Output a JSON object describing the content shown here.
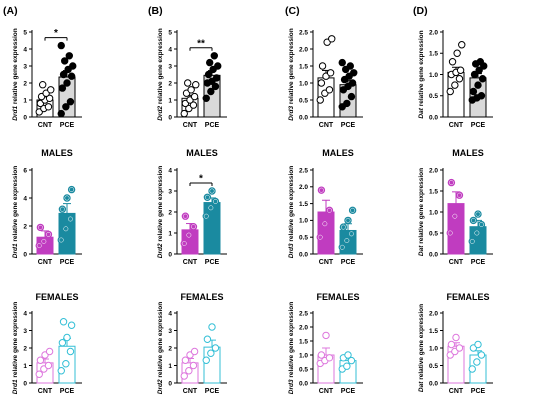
{
  "colors": {
    "combined_cnt_fill": "#ffffff",
    "combined_pce_fill": "#d9d9d9",
    "combined_stroke": "#000000",
    "males_cnt": "#c03cc0",
    "males_pce": "#1a8aa0",
    "females_cnt": "#dd77dd",
    "females_pce": "#33bfd6"
  },
  "panel_letters": [
    "(A)",
    "(B)",
    "(C)",
    "(D)"
  ],
  "row_labels": [
    "",
    "MALES",
    "FEMALES"
  ],
  "chart_data": [
    {
      "type": "bar",
      "panel": "(A)",
      "row": "combined",
      "ylabel_gene": "Drd1",
      "ylabel_rest": " relative gene expression",
      "ylim": [
        0,
        5
      ],
      "yticks": [
        "0",
        "1",
        "2",
        "3",
        "4",
        "5"
      ],
      "categories": [
        "CNT",
        "PCE"
      ],
      "series": [
        {
          "values": [
            1.0,
            2.35
          ],
          "sem": [
            0.18,
            0.38
          ]
        }
      ],
      "points": [
        [
          0.3,
          0.5,
          0.6,
          0.8,
          1.0,
          1.1,
          1.2,
          1.4,
          1.6,
          1.9
        ],
        [
          0.2,
          0.6,
          0.9,
          1.7,
          2.0,
          2.4,
          2.5,
          2.8,
          3.0,
          3.3,
          3.6,
          4.2
        ]
      ],
      "significance": [
        {
          "label": "*",
          "between": [
            "CNT",
            "PCE"
          ]
        }
      ]
    },
    {
      "type": "bar",
      "panel": "(B)",
      "row": "combined",
      "ylabel_gene": "Drd2",
      "ylabel_rest": " relative gene expression",
      "ylim": [
        0,
        5
      ],
      "yticks": [
        "0",
        "1",
        "2",
        "3",
        "4",
        "5"
      ],
      "categories": [
        "CNT",
        "PCE"
      ],
      "series": [
        {
          "values": [
            1.1,
            2.45
          ],
          "sem": [
            0.18,
            0.28
          ]
        }
      ],
      "points": [
        [
          0.2,
          0.5,
          0.7,
          0.8,
          1.0,
          1.2,
          1.4,
          1.6,
          1.9,
          2.0
        ],
        [
          1.1,
          1.5,
          1.8,
          2.0,
          2.1,
          2.3,
          2.5,
          2.8,
          3.0,
          3.2,
          3.6
        ]
      ],
      "significance": [
        {
          "label": "**",
          "between": [
            "CNT",
            "PCE"
          ]
        }
      ]
    },
    {
      "type": "bar",
      "panel": "(C)",
      "row": "combined",
      "ylabel_gene": "Drd3",
      "ylabel_rest": " relative gene expression",
      "ylim": [
        0,
        2.5
      ],
      "yticks": [
        "0.0",
        "0.5",
        "1.0",
        "1.5",
        "2.0",
        "2.5"
      ],
      "categories": [
        "CNT",
        "PCE"
      ],
      "series": [
        {
          "values": [
            1.15,
            0.95
          ],
          "sem": [
            0.22,
            0.12
          ]
        }
      ],
      "points": [
        [
          0.5,
          0.7,
          0.8,
          1.0,
          1.2,
          1.3,
          1.5,
          2.2,
          2.3
        ],
        [
          0.3,
          0.4,
          0.6,
          0.8,
          0.9,
          1.0,
          1.1,
          1.2,
          1.3,
          1.4,
          1.5,
          1.6
        ]
      ],
      "significance": []
    },
    {
      "type": "bar",
      "panel": "(D)",
      "row": "combined",
      "ylabel_gene": "Dat",
      "ylabel_rest": " relative gene expression",
      "ylim": [
        0,
        2.0
      ],
      "yticks": [
        "0.0",
        "0.5",
        "1.0",
        "1.5",
        "2.0"
      ],
      "categories": [
        "CNT",
        "PCE"
      ],
      "series": [
        {
          "values": [
            1.05,
            0.92
          ],
          "sem": [
            0.12,
            0.1
          ]
        }
      ],
      "points": [
        [
          0.6,
          0.75,
          0.9,
          1.0,
          1.05,
          1.1,
          1.3,
          1.5,
          1.7
        ],
        [
          0.4,
          0.45,
          0.5,
          0.6,
          0.75,
          0.9,
          1.0,
          1.1,
          1.2,
          1.25,
          1.3
        ]
      ],
      "significance": []
    },
    {
      "type": "bar",
      "panel": "(A)",
      "row": "males",
      "ylabel_gene": "Drd1",
      "ylabel_rest": " relative gene expression",
      "ylim": [
        0,
        6
      ],
      "yticks": [
        "0",
        "2",
        "4",
        "6"
      ],
      "categories": [
        "CNT",
        "PCE"
      ],
      "series": [
        {
          "values": [
            1.2,
            2.9
          ],
          "sem": [
            0.45,
            0.7
          ]
        }
      ],
      "points": [
        [
          0.6,
          0.9,
          1.4,
          1.9
        ],
        [
          1.0,
          1.8,
          2.5,
          3.2,
          4.0,
          4.6
        ]
      ],
      "significance": []
    },
    {
      "type": "bar",
      "panel": "(B)",
      "row": "males",
      "ylabel_gene": "Drd2",
      "ylabel_rest": " relative gene expression",
      "ylim": [
        0,
        4
      ],
      "yticks": [
        "0",
        "1",
        "2",
        "3",
        "4"
      ],
      "categories": [
        "CNT",
        "PCE"
      ],
      "series": [
        {
          "values": [
            1.15,
            2.45
          ],
          "sem": [
            0.3,
            0.22
          ]
        }
      ],
      "points": [
        [
          0.5,
          0.9,
          1.3,
          1.8
        ],
        [
          1.8,
          2.2,
          2.5,
          2.7,
          3.0
        ]
      ],
      "significance": [
        {
          "label": "*",
          "between": [
            "CNT",
            "PCE"
          ]
        }
      ]
    },
    {
      "type": "bar",
      "panel": "(C)",
      "row": "males",
      "ylabel_gene": "Drd3",
      "ylabel_rest": " relative gene expression",
      "ylim": [
        0,
        2.5
      ],
      "yticks": [
        "0.0",
        "0.5",
        "1.0",
        "1.5",
        "2.0",
        "2.5"
      ],
      "categories": [
        "CNT",
        "PCE"
      ],
      "series": [
        {
          "values": [
            1.25,
            0.7
          ],
          "sem": [
            0.35,
            0.2
          ]
        }
      ],
      "points": [
        [
          0.5,
          0.9,
          1.3,
          1.9
        ],
        [
          0.2,
          0.4,
          0.6,
          0.8,
          1.0,
          1.3
        ]
      ],
      "significance": []
    },
    {
      "type": "bar",
      "panel": "(D)",
      "row": "males",
      "ylabel_gene": "Dat",
      "ylabel_rest": " relative gene expression",
      "ylim": [
        0,
        2.0
      ],
      "yticks": [
        "0.0",
        "0.5",
        "1.0",
        "1.5",
        "2.0"
      ],
      "categories": [
        "CNT",
        "PCE"
      ],
      "series": [
        {
          "values": [
            1.2,
            0.65
          ],
          "sem": [
            0.28,
            0.15
          ]
        }
      ],
      "points": [
        [
          0.5,
          0.9,
          1.4,
          1.7
        ],
        [
          0.3,
          0.5,
          0.7,
          0.8,
          0.95
        ]
      ],
      "significance": []
    },
    {
      "type": "bar",
      "panel": "(A)",
      "row": "females",
      "ylabel_gene": "Drd1",
      "ylabel_rest": " relative gene expression",
      "ylim": [
        0,
        4
      ],
      "yticks": [
        "0",
        "1",
        "2",
        "3",
        "4"
      ],
      "categories": [
        "CNT",
        "PCE"
      ],
      "series": [
        {
          "values": [
            1.15,
            2.1
          ],
          "sem": [
            0.22,
            0.45
          ]
        }
      ],
      "points": [
        [
          0.5,
          0.8,
          1.0,
          1.3,
          1.6,
          1.8
        ],
        [
          0.7,
          1.1,
          1.8,
          2.3,
          2.6,
          3.3,
          3.5
        ]
      ],
      "significance": []
    },
    {
      "type": "bar",
      "panel": "(B)",
      "row": "females",
      "ylabel_gene": "Drd2",
      "ylabel_rest": " relative gene expression",
      "ylim": [
        0,
        4
      ],
      "yticks": [
        "0",
        "1",
        "2",
        "3",
        "4"
      ],
      "categories": [
        "CNT",
        "PCE"
      ],
      "series": [
        {
          "values": [
            1.15,
            2.05
          ],
          "sem": [
            0.25,
            0.4
          ]
        }
      ],
      "points": [
        [
          0.4,
          0.7,
          1.0,
          1.3,
          1.6,
          1.8
        ],
        [
          1.3,
          1.7,
          2.0,
          2.5,
          3.2
        ]
      ],
      "significance": []
    },
    {
      "type": "bar",
      "panel": "(C)",
      "row": "females",
      "ylabel_gene": "Drd3",
      "ylabel_rest": " relative gene expression",
      "ylim": [
        0,
        2.5
      ],
      "yticks": [
        "0.0",
        "0.5",
        "1.0",
        "1.5",
        "2.0",
        "2.5"
      ],
      "categories": [
        "CNT",
        "PCE"
      ],
      "series": [
        {
          "values": [
            1.0,
            0.8
          ],
          "sem": [
            0.25,
            0.1
          ]
        }
      ],
      "points": [
        [
          0.7,
          0.8,
          0.9,
          1.0,
          1.7
        ],
        [
          0.5,
          0.6,
          0.8,
          0.9,
          1.0
        ]
      ],
      "significance": []
    },
    {
      "type": "bar",
      "panel": "(D)",
      "row": "females",
      "ylabel_gene": "Dat",
      "ylabel_rest": " relative gene expression",
      "ylim": [
        0,
        2.0
      ],
      "yticks": [
        "0.0",
        "0.5",
        "1.0",
        "1.5",
        "2.0"
      ],
      "categories": [
        "CNT",
        "PCE"
      ],
      "series": [
        {
          "values": [
            1.05,
            0.8
          ],
          "sem": [
            0.1,
            0.12
          ]
        }
      ],
      "points": [
        [
          0.8,
          0.9,
          1.0,
          1.1,
          1.3
        ],
        [
          0.4,
          0.6,
          0.8,
          1.0,
          1.1
        ]
      ],
      "significance": []
    }
  ]
}
